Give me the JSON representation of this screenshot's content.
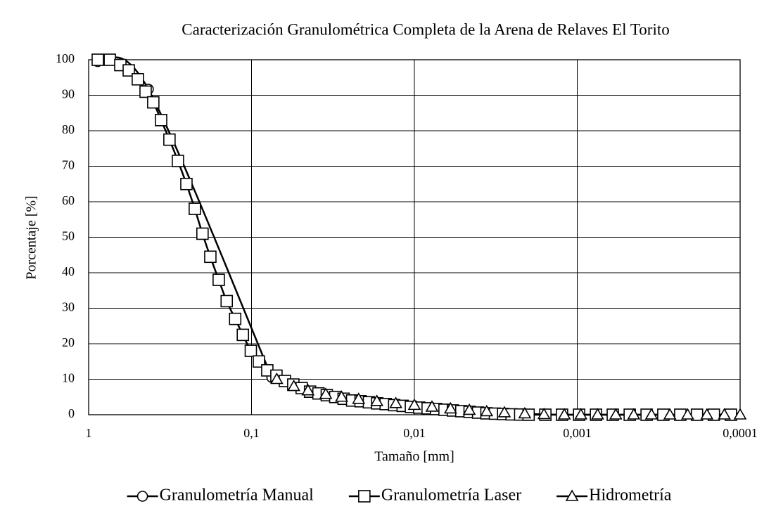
{
  "chart_data": {
    "type": "line",
    "title": "Caracterización Granulométrica Completa de la Arena de Relaves El Torito",
    "x_label": "Tamaño [mm]",
    "y_label": "Porcentaje [%]",
    "x_log": true,
    "grid": true,
    "legend": "bottom",
    "xlim": [
      1,
      0.0001
    ],
    "xticks": [
      1,
      {
        "value": 0.1,
        "label": "0,1"
      },
      {
        "value": 0.01,
        "label": "0,01"
      },
      {
        "value": 0.001,
        "label": "0,001"
      },
      {
        "value": 0.0001,
        "label": "0,0001"
      }
    ],
    "ylim": [
      0,
      100
    ],
    "yticks": [
      0,
      10,
      20,
      30,
      40,
      50,
      60,
      70,
      80,
      90,
      100
    ],
    "series": [
      {
        "name": "Granulometría Manual",
        "color": "#000000",
        "marker": "circle",
        "x": [
          0.88,
          0.43,
          0.075
        ],
        "values": [
          99.5,
          91.7,
          10.5
        ]
      },
      {
        "name": "Granulometría Laser",
        "color": "#000000",
        "marker": "square",
        "x": [
          0.879,
          0.741,
          0.639,
          0.567,
          0.499,
          0.447,
          0.401,
          0.359,
          0.319,
          0.283,
          0.251,
          0.223,
          0.2,
          0.179,
          0.159,
          0.142,
          0.126,
          0.113,
          0.101,
          0.0901,
          0.08,
          0.0703,
          0.0624,
          0.0554,
          0.0492,
          0.0437,
          0.0388,
          0.0345,
          0.0306,
          0.0272,
          0.0241,
          0.0214,
          0.019,
          0.0169,
          0.015,
          0.0133,
          0.0118,
          0.0105,
          0.00933,
          0.00829,
          0.00736,
          0.00653,
          0.0058,
          0.00515,
          0.00458,
          0.00406,
          0.00361,
          0.0032,
          0.00285,
          0.00253,
          0.00224,
          0.00199,
          0.00157,
          0.00124,
          0.000974,
          0.000767,
          0.000605,
          0.000476,
          0.000375,
          0.000296,
          0.000233,
          0.000184,
          0.000145,
          0.000114
        ],
        "values": [
          100,
          100,
          98.5,
          97,
          94.5,
          91,
          88,
          83,
          77.5,
          71.5,
          65,
          58,
          51,
          44.5,
          38,
          32,
          27,
          22.5,
          18,
          15,
          12.5,
          11,
          9.5,
          8.5,
          7.5,
          6.5,
          6,
          5.5,
          5,
          4.5,
          4,
          3.8,
          3.5,
          3.2,
          3,
          2.7,
          2.5,
          2.2,
          2,
          1.8,
          1.6,
          1.4,
          1.2,
          1,
          0.8,
          0.6,
          0.4,
          0.3,
          0.2,
          0.1,
          0.05,
          0,
          0,
          0,
          0,
          0,
          0,
          0,
          0,
          0,
          0,
          0,
          0,
          0
        ]
      },
      {
        "name": "Hidrometría",
        "color": "#000000",
        "marker": "triangle",
        "x": [
          0.07,
          0.055,
          0.045,
          0.035,
          0.028,
          0.022,
          0.017,
          0.013,
          0.01,
          0.0078,
          0.006,
          0.0046,
          0.0036,
          0.0028,
          0.0021,
          0.0016,
          0.0012,
          0.00095,
          0.00075,
          0.00058,
          0.00045,
          0.00035,
          0.00027,
          0.00021,
          0.00016,
          0.000125,
          0.0001
        ],
        "values": [
          10,
          8,
          6.8,
          5.8,
          5,
          4.4,
          3.8,
          3.2,
          2.7,
          2.2,
          1.7,
          1.3,
          0.9,
          0.6,
          0.3,
          0.1,
          0,
          0,
          0,
          0,
          0,
          0,
          0,
          0,
          0,
          0,
          0
        ]
      }
    ]
  }
}
